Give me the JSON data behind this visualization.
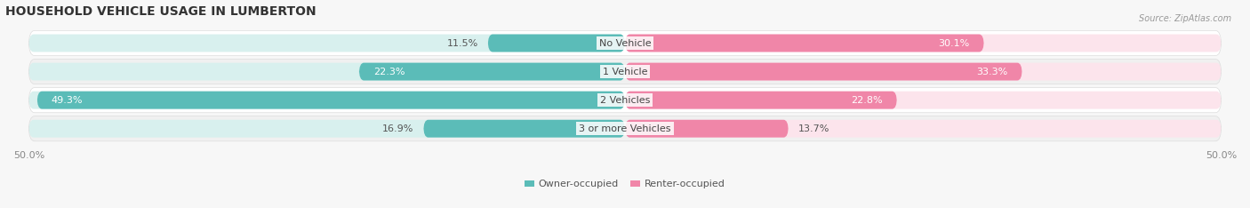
{
  "title": "HOUSEHOLD VEHICLE USAGE IN LUMBERTON",
  "source": "Source: ZipAtlas.com",
  "categories": [
    "No Vehicle",
    "1 Vehicle",
    "2 Vehicles",
    "3 or more Vehicles"
  ],
  "owner_values": [
    11.5,
    22.3,
    49.3,
    16.9
  ],
  "renter_values": [
    30.1,
    33.3,
    22.8,
    13.7
  ],
  "owner_color": "#5bbcb8",
  "renter_color": "#f086a8",
  "axis_max": 50.0,
  "bar_height": 0.62,
  "row_bg_color": "#ebebeb",
  "row_alt_bg": "#f0f0f0",
  "background_color": "#f7f7f7",
  "title_fontsize": 10,
  "label_fontsize": 8,
  "tick_fontsize": 8,
  "legend_fontsize": 8,
  "source_fontsize": 7
}
